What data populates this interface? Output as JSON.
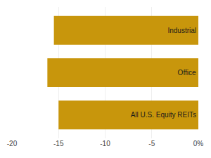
{
  "chart_data": {
    "type": "bar",
    "orientation": "horizontal",
    "categories": [
      "All U.S. Equity REITs",
      "Office",
      "Industrial"
    ],
    "values": [
      -15.0,
      -16.2,
      -15.5
    ],
    "color": "#C8960C",
    "xlim": [
      -20,
      0
    ],
    "xticks": [
      -20,
      -15,
      -10,
      -5,
      {
        "value": 0,
        "label": "0%"
      }
    ],
    "grid": true,
    "tick_labels": "x"
  }
}
